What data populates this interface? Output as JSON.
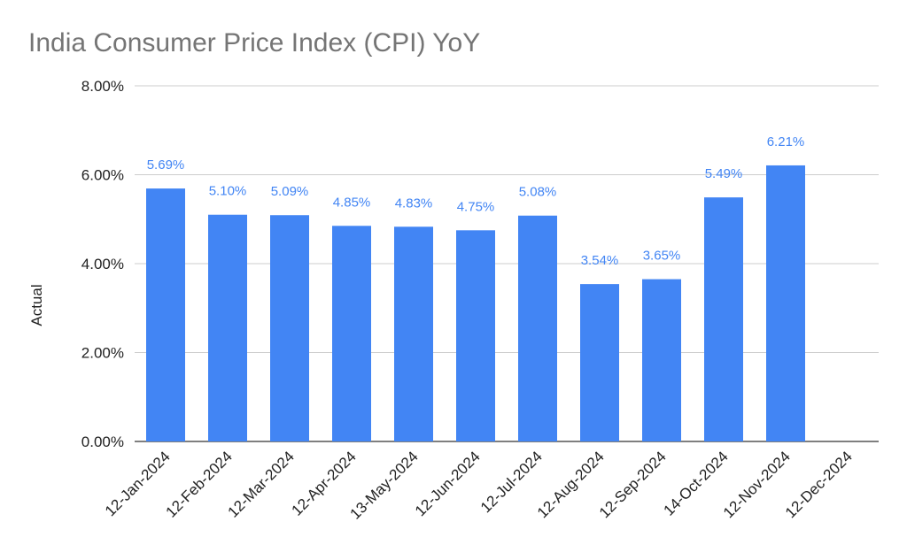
{
  "chart_data": {
    "type": "bar",
    "title": "India Consumer Price Index (CPI) YoY",
    "xlabel": "",
    "ylabel": "Actual",
    "ylim": [
      0,
      8
    ],
    "yticks": [
      "0.00%",
      "2.00%",
      "4.00%",
      "6.00%",
      "8.00%"
    ],
    "grid": true,
    "legend": "none",
    "categories": [
      "12-Jan-2024",
      "12-Feb-2024",
      "12-Mar-2024",
      "12-Apr-2024",
      "13-May-2024",
      "12-Jun-2024",
      "12-Jul-2024",
      "12-Aug-2024",
      "12-Sep-2024",
      "14-Oct-2024",
      "12-Nov-2024",
      "12-Dec-2024"
    ],
    "values": [
      5.69,
      5.1,
      5.09,
      4.85,
      4.83,
      4.75,
      5.08,
      3.54,
      3.65,
      5.49,
      6.21,
      null
    ],
    "data_labels": [
      "5.69%",
      "5.10%",
      "5.09%",
      "4.85%",
      "4.83%",
      "4.75%",
      "5.08%",
      "3.54%",
      "3.65%",
      "5.49%",
      "6.21%",
      ""
    ],
    "colors": {
      "bar": "#4285f4",
      "data_label": "#4285f4",
      "grid": "#cccccc",
      "axis": "#333333"
    }
  }
}
